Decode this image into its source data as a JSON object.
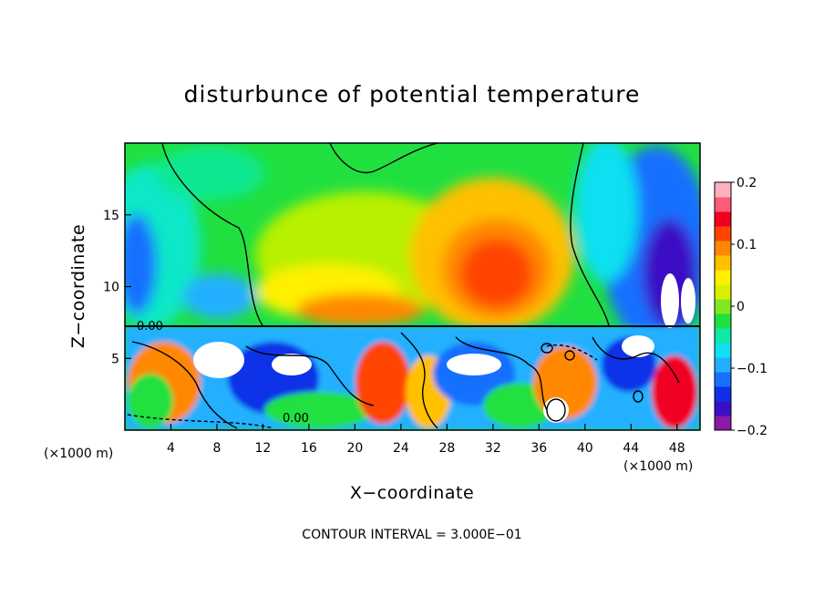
{
  "chart_data": {
    "type": "heatmap",
    "title": "disturbunce of potential temperature",
    "xlabel": "X−coordinate",
    "ylabel": "Z−coordinate",
    "x_unit": "(×1000 m)",
    "x_unit_right": "(×1000 m)",
    "xlim": [
      0,
      50
    ],
    "ylim": [
      0,
      20
    ],
    "x_ticks": [
      4,
      8,
      12,
      16,
      20,
      24,
      28,
      32,
      36,
      40,
      44,
      48
    ],
    "y_ticks": [
      5,
      10,
      15
    ],
    "colorbar": {
      "ticks": [
        0.2,
        0.1,
        0,
        -0.1,
        -0.2
      ],
      "tick_labels": [
        "0.2",
        "0.1",
        "0",
        "−0.1",
        "−0.2"
      ],
      "range": [
        -0.2,
        0.2
      ],
      "colors": [
        "#8a1aa8",
        "#3a10c4",
        "#1030e8",
        "#1870ff",
        "#20b0ff",
        "#10e0f0",
        "#10e8a8",
        "#20e040",
        "#80e820",
        "#d8f000",
        "#fff000",
        "#ffc000",
        "#ff8800",
        "#ff4400",
        "#f00020",
        "#ff5a78",
        "#ffb0c0"
      ]
    },
    "contour_labels": [
      "0.00",
      "0.00"
    ],
    "contour_interval_text": "CONTOUR INTERVAL = 3.000E−01",
    "grid": false
  }
}
